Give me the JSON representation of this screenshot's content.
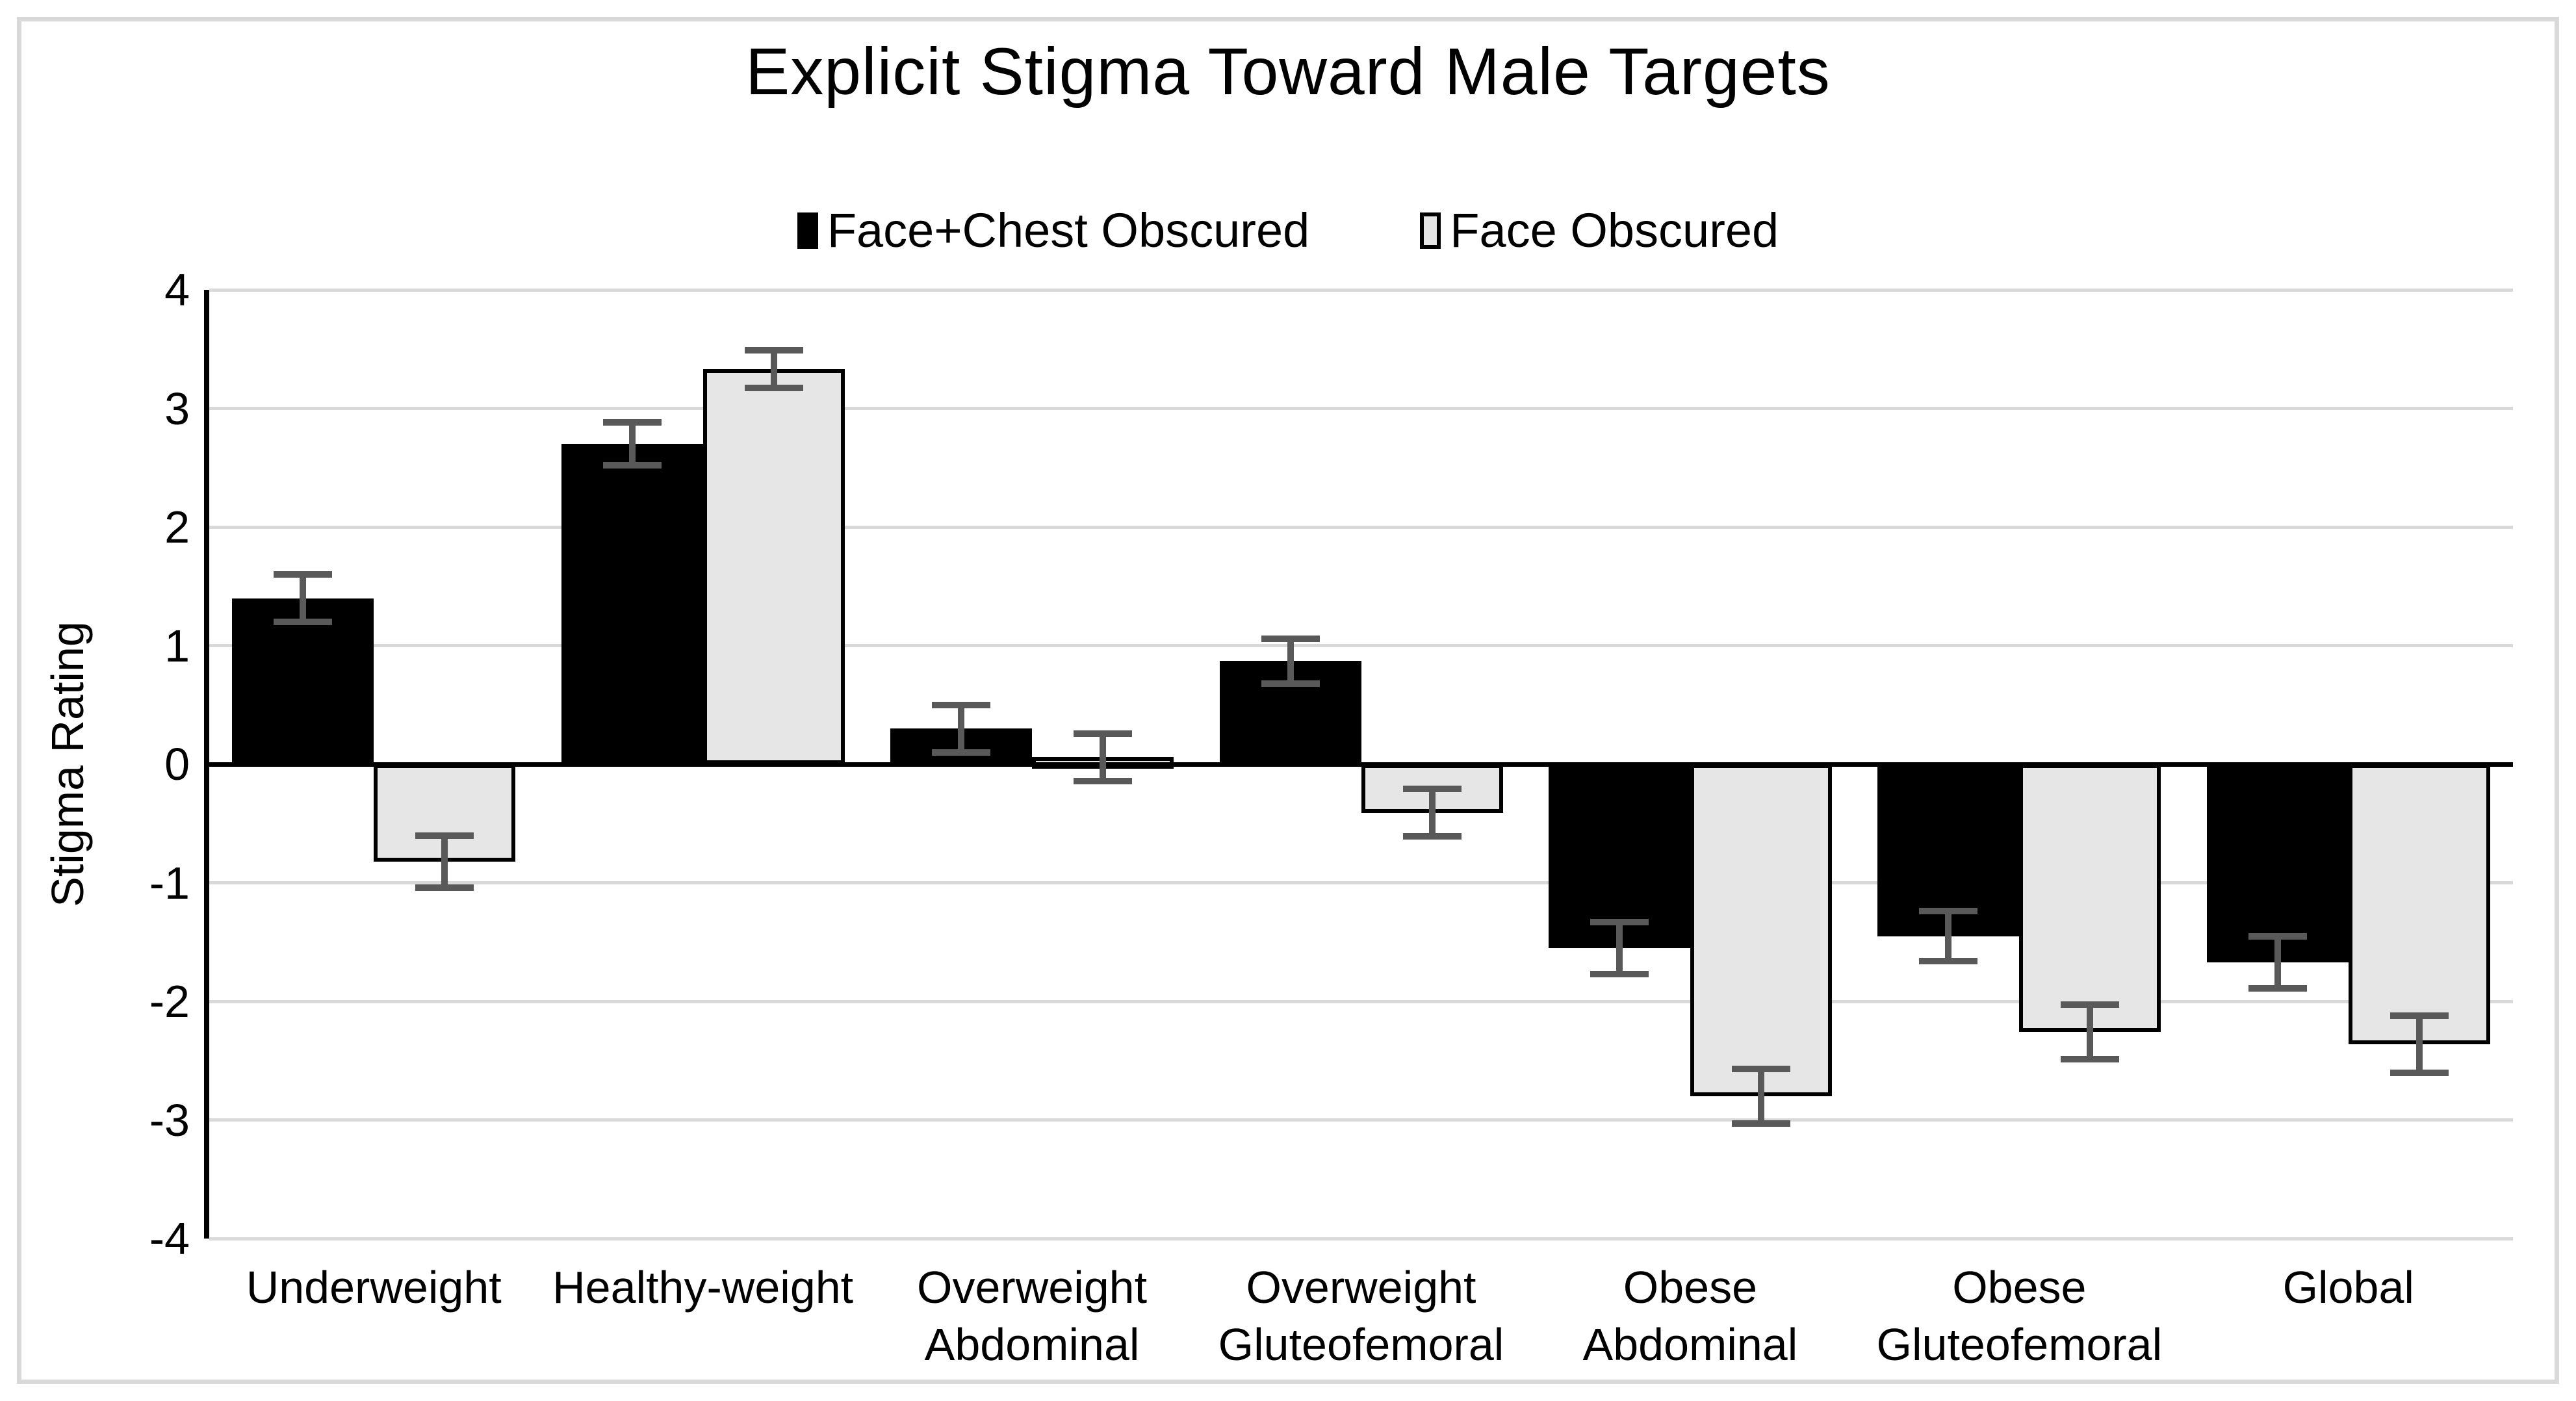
{
  "figure": {
    "title": "Explicit Stigma Toward Male Targets"
  },
  "legend": {
    "items": [
      {
        "label": "Face+Chest Obscured",
        "swatch": "black"
      },
      {
        "label": "Face Obscured",
        "swatch": "light-gray"
      }
    ]
  },
  "y_axis": {
    "title": "Stigma Rating",
    "ticks": [
      4,
      3,
      2,
      1,
      0,
      -1,
      -2,
      -3,
      -4
    ],
    "min": -4,
    "max": 4
  },
  "chart_data": {
    "type": "bar",
    "title": "Explicit Stigma Toward Male Targets",
    "categories": [
      "Underweight",
      "Healthy-weight",
      "Overweight Abdominal",
      "Overweight Gluteofemoral",
      "Obese Abdominal",
      "Obese Gluteofemoral",
      "Global"
    ],
    "series": [
      {
        "name": "Face+Chest Obscured",
        "color": "#000000",
        "values": [
          1.4,
          2.7,
          0.3,
          0.87,
          -1.55,
          -1.45,
          -1.67
        ],
        "errors": [
          0.2,
          0.18,
          0.2,
          0.19,
          0.22,
          0.21,
          0.22
        ]
      },
      {
        "name": "Face Obscured",
        "color": "#e6e6e6",
        "values": [
          -0.82,
          3.33,
          0.06,
          -0.41,
          -2.8,
          -2.26,
          -2.36
        ],
        "errors": [
          0.22,
          0.16,
          0.2,
          0.2,
          0.23,
          0.23,
          0.24
        ]
      }
    ],
    "xlabel": "",
    "ylabel": "Stigma Rating",
    "ylim": [
      -4,
      4
    ],
    "grid": true,
    "legend_position": "top",
    "error_bars": true
  },
  "colors": {
    "bar_black": "#000000",
    "bar_gray_fill": "#e6e6e6",
    "bar_gray_border": "#000000",
    "error_bar": "#595959",
    "gridline": "#d9d9d9",
    "zero_line": "#000000",
    "frame_border": "#d9d9d9",
    "text": "#000000"
  }
}
